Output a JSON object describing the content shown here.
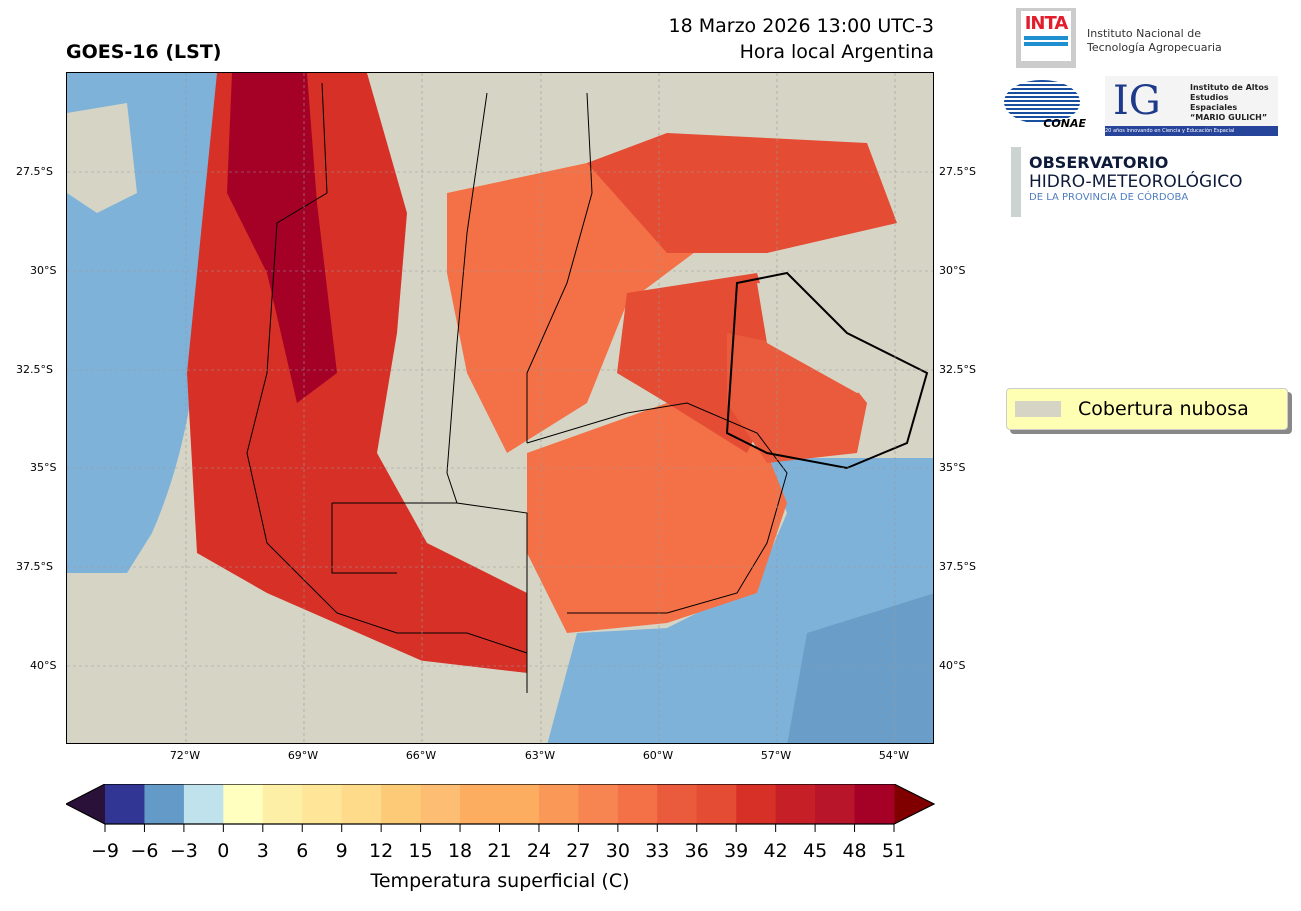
{
  "header": {
    "title": "GOES-16 (LST)",
    "date": "18 Marzo 2026 13:00 UTC-3",
    "subtitle": "Hora local Argentina"
  },
  "map": {
    "lat_ticks_left": [
      "27.5°S",
      "30°S",
      "32.5°S",
      "35°S",
      "37.5°S",
      "40°S"
    ],
    "lat_ticks_right": [
      "27.5°S",
      "30°S",
      "32.5°S",
      "35°S",
      "37.5°S",
      "40°S"
    ],
    "lon_ticks": [
      "72°W",
      "69°W",
      "66°W",
      "63°W",
      "60°W",
      "57°W",
      "54°W"
    ],
    "cloud_color": "#d6d5c5",
    "ocean_color": "#7fb2d9"
  },
  "legend": {
    "label": "Cobertura nubosa"
  },
  "colorbar": {
    "label": "Temperatura superficial (C)",
    "ticks": [
      "−9",
      "−6",
      "−3",
      "0",
      "3",
      "6",
      "9",
      "12",
      "15",
      "18",
      "21",
      "24",
      "27",
      "30",
      "33",
      "36",
      "39",
      "42",
      "45",
      "48",
      "51"
    ],
    "colors": [
      "#313695",
      "#649ac7",
      "#bfe2ed",
      "#ffffbf",
      "#feefa6",
      "#fee597",
      "#fddb8b",
      "#fdca78",
      "#fdbd72",
      "#fdad60",
      "#f99857",
      "#f78552",
      "#f47147",
      "#ea5a3c",
      "#e44c34",
      "#d73027",
      "#c61f28",
      "#b8152a",
      "#a50026"
    ],
    "under_color": "#2a1139",
    "over_color": "#800000"
  },
  "logos": {
    "inta": {
      "mark": "INTA",
      "name_line1": "Instituto Nacional de",
      "name_line2": "Tecnología Agropecuaria"
    },
    "conae": {
      "mark": "CONAE"
    },
    "ig": {
      "mark": "IG",
      "line1": "Instituto de Altos",
      "line2": "Estudios Espaciales",
      "line3": "“MARIO GULICH”",
      "tagline": "20 años innovando en Ciencia y Educación Espacial"
    },
    "observatorio": {
      "line1": "OBSERVATORIO",
      "line2": "HIDRO-METEOROLÓGICO",
      "line3": "DE LA PROVINCIA DE CÓRDOBA"
    }
  }
}
